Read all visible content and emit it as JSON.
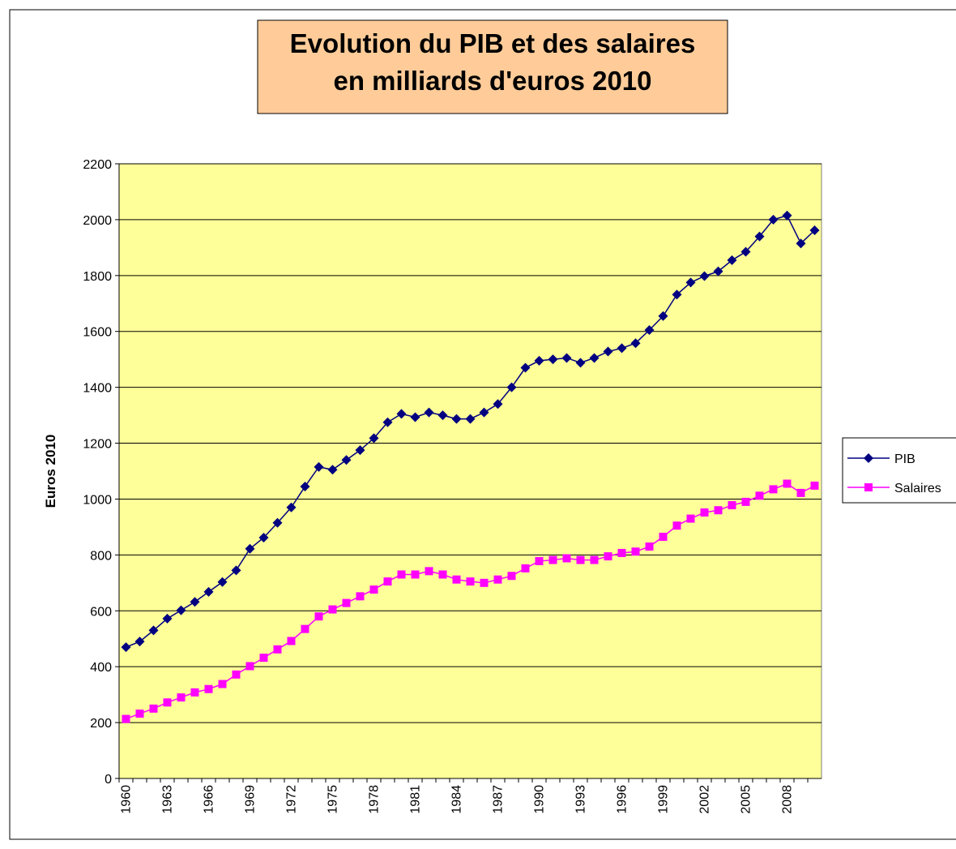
{
  "chart_data": {
    "type": "line",
    "title": [
      "Evolution du PIB et des salaires",
      "en milliards d'euros 2010"
    ],
    "y_label": "Euros 2010",
    "categories": [
      "1960",
      null,
      null,
      "1963",
      null,
      null,
      "1966",
      null,
      null,
      "1969",
      null,
      null,
      "1972",
      null,
      null,
      "1975",
      null,
      null,
      "1978",
      null,
      null,
      "1981",
      null,
      null,
      "1984",
      null,
      null,
      "1987",
      null,
      null,
      "1990",
      null,
      null,
      "1993",
      null,
      null,
      "1996",
      null,
      null,
      "1999",
      null,
      null,
      "2002",
      null,
      null,
      "2005",
      null,
      null,
      "2008",
      null,
      null
    ],
    "series": [
      {
        "name": "PIB",
        "color": "#000080",
        "marker": "diamond",
        "values": [
          470,
          490,
          530,
          572,
          602,
          632,
          668,
          703,
          745,
          822,
          862,
          915,
          970,
          1045,
          1115,
          1105,
          1140,
          1175,
          1218,
          1275,
          1305,
          1293,
          1310,
          1300,
          1287,
          1287,
          1310,
          1340,
          1400,
          1470,
          1495,
          1500,
          1505,
          1488,
          1505,
          1528,
          1540,
          1558,
          1605,
          1655,
          1732,
          1775,
          1798,
          1815,
          1855,
          1885,
          1940,
          2000,
          2015,
          1915,
          1962
        ]
      },
      {
        "name": "Salaires",
        "color": "#FF00FF",
        "marker": "square",
        "values": [
          213,
          232,
          250,
          272,
          290,
          308,
          320,
          338,
          372,
          402,
          432,
          462,
          492,
          535,
          580,
          605,
          628,
          652,
          676,
          705,
          730,
          730,
          742,
          730,
          712,
          705,
          700,
          712,
          725,
          752,
          778,
          782,
          788,
          782,
          782,
          795,
          807,
          812,
          830,
          865,
          905,
          930,
          952,
          960,
          978,
          990,
          1012,
          1035,
          1055,
          1022,
          1048
        ]
      }
    ],
    "ylim": [
      0,
      2200
    ],
    "yticks": [
      0,
      200,
      400,
      600,
      800,
      1000,
      1200,
      1400,
      1600,
      1800,
      2000,
      2200
    ],
    "grid": true,
    "plot_color": "#FFFF99",
    "title_box_color": "#FFCC99",
    "legend": "right"
  }
}
